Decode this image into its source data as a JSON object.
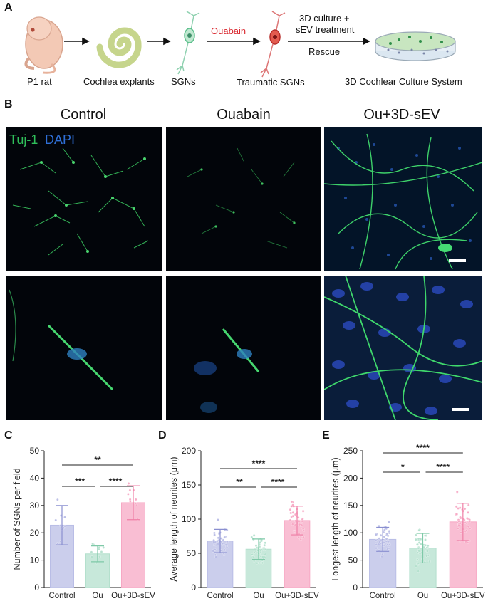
{
  "panels": {
    "a": "A",
    "b": "B",
    "c": "C",
    "d": "D",
    "e": "E"
  },
  "schematic": {
    "steps": [
      "P1 rat",
      "Cochlea explants",
      "SGNs",
      "Traumatic SGNs",
      "3D Cochlear Culture System"
    ],
    "arrow_ouabain": "Ouabain",
    "arrow_treatment_line1": "3D culture +",
    "arrow_treatment_line2": "sEV treatment",
    "arrow_rescue": "Rescue",
    "ouabain_color": "#d9282f"
  },
  "micrographs": {
    "columns": [
      "Control",
      "Ouabain",
      "Ou+3D-sEV"
    ],
    "stain_tuj1": "Tuj-1",
    "stain_dapi": "DAPI",
    "tuj1_color": "#2fbf5a",
    "dapi_color": "#2f6fd6"
  },
  "chart_data": [
    {
      "type": "bar",
      "categories": [
        "Control",
        "Ou",
        "Ou+3D-sEV"
      ],
      "values": [
        22.8,
        12.3,
        31.0
      ],
      "errors": [
        7.2,
        2.9,
        6.2
      ],
      "ylabel": "Number of SGNs per field",
      "ylim": [
        0,
        50
      ],
      "yticks": [
        0,
        10,
        20,
        30,
        40,
        50
      ],
      "colors": [
        "#b9bde6",
        "#b4e0cd",
        "#f7a8c4"
      ],
      "significance": [
        {
          "from": 0,
          "to": 1,
          "label": "***"
        },
        {
          "from": 1,
          "to": 2,
          "label": "****"
        },
        {
          "from": 0,
          "to": 2,
          "label": "**"
        }
      ]
    },
    {
      "type": "bar",
      "categories": [
        "Control",
        "Ou",
        "Ou+3D-sEV"
      ],
      "values": [
        68,
        56,
        98
      ],
      "errors": [
        17,
        15,
        21
      ],
      "ylabel": "Average length of neurites (μm)",
      "ylim": [
        0,
        200
      ],
      "yticks": [
        0,
        50,
        100,
        150,
        200
      ],
      "colors": [
        "#b9bde6",
        "#b4e0cd",
        "#f7a8c4"
      ],
      "significance": [
        {
          "from": 0,
          "to": 1,
          "label": "**"
        },
        {
          "from": 1,
          "to": 2,
          "label": "****"
        },
        {
          "from": 0,
          "to": 2,
          "label": "****"
        }
      ]
    },
    {
      "type": "bar",
      "categories": [
        "Control",
        "Ou",
        "Ou+3D-sEV"
      ],
      "values": [
        88,
        72,
        120
      ],
      "errors": [
        22,
        27,
        34
      ],
      "ylabel": "Longest length of neurites (μm)",
      "ylim": [
        0,
        250
      ],
      "yticks": [
        0,
        50,
        100,
        150,
        200,
        250
      ],
      "colors": [
        "#b9bde6",
        "#b4e0cd",
        "#f7a8c4"
      ],
      "significance": [
        {
          "from": 0,
          "to": 1,
          "label": "*"
        },
        {
          "from": 1,
          "to": 2,
          "label": "****"
        },
        {
          "from": 0,
          "to": 2,
          "label": "****"
        }
      ]
    }
  ]
}
